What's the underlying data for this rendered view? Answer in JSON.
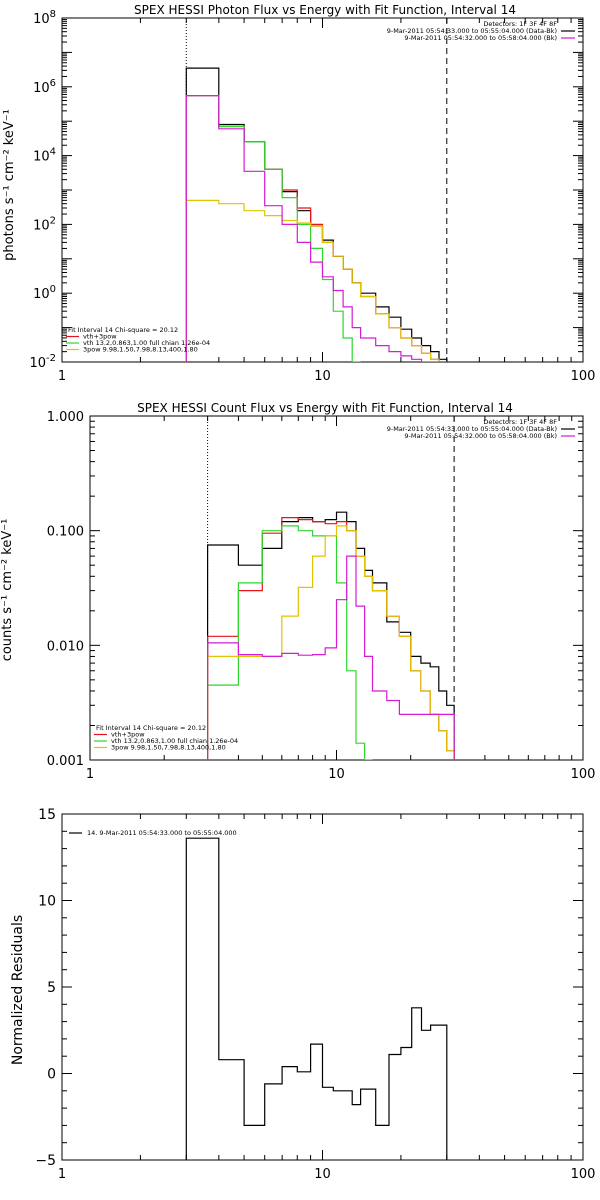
{
  "colors": {
    "black": "#000000",
    "red": "#e8121a",
    "green": "#2ed62e",
    "magenta": "#d61ad6",
    "yellow": "#e0c400",
    "axes": "#000000"
  },
  "chart_data": [
    {
      "type": "line",
      "title": "SPEX HESSI Photon Flux vs Energy with Fit Function, Interval 14",
      "xlabel": "",
      "ylabel": "photons s⁻¹ cm⁻² keV⁻¹",
      "xscale": "log",
      "yscale": "log",
      "xlim": [
        1,
        100
      ],
      "ylim": [
        0.01,
        100000000
      ],
      "x_tick_labels": [
        "1",
        "10",
        "100"
      ],
      "y_tick_labels": [
        "10^-2",
        "10^0",
        "10^2",
        "10^4",
        "10^6",
        "10^8"
      ],
      "vlines": [
        {
          "x": 3,
          "style": "dotted"
        },
        {
          "x": 30,
          "style": "dashed"
        }
      ],
      "legend_top": [
        "Detectors: 1F 3F 4F 8F",
        "9-Mar-2011 05:54:33.000 to 05:55:04.000 (Data-Bk)",
        "9-Mar-2011 05:54:32.000 to 05:58:04.000 (Bk)"
      ],
      "legend_top_colors": [
        "#000000",
        "#000000",
        "#d61ad6"
      ],
      "legend_bottom": [
        "Fit Interval 14   Chi-square = 20.12",
        "vth+3pow",
        "vth 13.2,0.863,1.00  full chian 1.26e-04",
        "3pow 9.98,1.50,7.98,8.13,400,1.80"
      ],
      "legend_bottom_colors": [
        "",
        "#e8121a",
        "#2ed62e",
        "#e0c400"
      ],
      "edges": [
        3.0,
        4.0,
        5.0,
        6.0,
        7.0,
        8.0,
        9.0,
        10.0,
        11.0,
        12.0,
        13.0,
        14.0,
        16.0,
        18.0,
        20.0,
        22.0,
        24.0,
        26.0,
        28.0,
        30.0
      ],
      "series": [
        {
          "name": "9-Mar-2011 05:54:33.000 to 05:55:04.000 (Data-Bk)",
          "color": "#000000",
          "values": [
            3500000,
            80000,
            25000,
            4000,
            900,
            250,
            90,
            35,
            12,
            5,
            2.0,
            1.0,
            0.4,
            0.2,
            0.09,
            0.05,
            0.03,
            0.02,
            0.012
          ]
        },
        {
          "name": "vth+3pow",
          "color": "#e8121a",
          "values": [
            550000,
            70000,
            25000,
            4000,
            1000,
            300,
            100,
            30,
            12,
            5,
            2.0,
            0.8,
            0.25,
            0.1,
            0.05,
            0.03,
            0.018,
            0.012,
            0.01
          ]
        },
        {
          "name": "vth 13.2,0.863,1.00  full chian 1.26e-04",
          "color": "#2ed62e",
          "values": [
            550000,
            70000,
            25000,
            4000,
            600,
            100,
            20,
            2.5,
            0.3,
            0.05,
            0.01
          ]
        },
        {
          "name": "3pow 9.98,1.50,7.98,8.13,400,1.80",
          "color": "#e0c400",
          "values": [
            500,
            400,
            250,
            180,
            130,
            110,
            90,
            30,
            12,
            5,
            2.0,
            0.8,
            0.25,
            0.1,
            0.05,
            0.03,
            0.018,
            0.012,
            0.01
          ]
        },
        {
          "name": "9-Mar-2011 05:54:32.000 to 05:58:04.000 (Bk)",
          "color": "#d61ad6",
          "values": [
            550000,
            60000,
            3500,
            350,
            100,
            30,
            8,
            3,
            1.2,
            0.4,
            0.1,
            0.05,
            0.03,
            0.02,
            0.015,
            0.012,
            0.01,
            0.01,
            0.01
          ]
        }
      ]
    },
    {
      "type": "line",
      "title": "SPEX HESSI Count Flux vs Energy with Fit Function, Interval 14",
      "xlabel": "",
      "ylabel": "counts s⁻¹ cm⁻² keV⁻¹",
      "xscale": "log",
      "yscale": "log",
      "xlim": [
        1,
        100
      ],
      "ylim": [
        0.001,
        1
      ],
      "x_tick_labels": [
        "1",
        "10",
        "100"
      ],
      "y_tick_labels": [
        "0.001",
        "0.010",
        "0.100",
        "1.000"
      ],
      "vlines": [
        {
          "x": 3,
          "style": "dotted"
        },
        {
          "x": 30,
          "style": "dashed"
        }
      ],
      "legend_top": [
        "Detectors: 1F 3F 4F 8F",
        "9-Mar-2011 05:54:33.000 to 05:55:04.000 (Data-Bk)",
        "9-Mar-2011 05:54:32.000 to 05:58:04.000 (Bk)"
      ],
      "legend_top_colors": [
        "#000000",
        "#000000",
        "#d61ad6"
      ],
      "legend_bottom": [
        "Fit Interval 14   Chi-square = 20.12",
        "vth+3pow",
        "vth 13.2,0.863,1.00  full chian 1.26e-04",
        "3pow 9.98,1.50,7.98,8.13,400,1.80"
      ],
      "legend_bottom_colors": [
        "",
        "#e8121a",
        "#2ed62e",
        "#e0c400"
      ],
      "edges": [
        3.0,
        4.0,
        5.0,
        6.0,
        7.0,
        8.0,
        9.0,
        10.0,
        11.0,
        12.0,
        13.0,
        14.0,
        16.0,
        18.0,
        20.0,
        22.0,
        24.0,
        26.0,
        28.0,
        30.0
      ],
      "series": [
        {
          "name": "9-Mar-2011 05:54:33.000 to 05:55:04.000 (Data-Bk)",
          "color": "#000000",
          "values": [
            0.075,
            0.05,
            0.07,
            0.12,
            0.13,
            0.12,
            0.125,
            0.145,
            0.12,
            0.07,
            0.045,
            0.035,
            0.016,
            0.013,
            0.008,
            0.007,
            0.0065,
            0.004,
            0.003
          ]
        },
        {
          "name": "vth+3pow",
          "color": "#e8121a",
          "values": [
            0.012,
            0.03,
            0.095,
            0.13,
            0.125,
            0.12,
            0.115,
            0.12,
            0.1,
            0.06,
            0.04,
            0.03,
            0.018,
            0.012,
            0.006,
            0.004,
            0.0025,
            0.0018,
            0.0012
          ]
        },
        {
          "name": "vth 13.2,0.863,1.00  full chian 1.26e-04",
          "color": "#2ed62e",
          "values": [
            0.0045,
            0.035,
            0.1,
            0.11,
            0.1,
            0.09,
            0.09,
            0.035,
            0.006,
            0.0014,
            0.001
          ]
        },
        {
          "name": "3pow 9.98,1.50,7.98,8.13,400,1.80",
          "color": "#e0c400",
          "values": [
            0.008,
            0.008,
            0.008,
            0.018,
            0.032,
            0.06,
            0.09,
            0.11,
            0.1,
            0.06,
            0.04,
            0.03,
            0.018,
            0.012,
            0.006,
            0.004,
            0.0025,
            0.0018,
            0.0012
          ]
        },
        {
          "name": "9-Mar-2011 05:54:32.000 to 05:58:04.000 (Bk)",
          "color": "#d61ad6",
          "values": [
            0.0105,
            0.0083,
            0.008,
            0.0085,
            0.0082,
            0.0083,
            0.0095,
            0.025,
            0.06,
            0.022,
            0.008,
            0.004,
            0.0033,
            0.0025,
            0.0025,
            0.0025,
            0.0025,
            0.0025,
            0.0025
          ]
        }
      ]
    },
    {
      "type": "line",
      "title": "",
      "xlabel": "",
      "ylabel": "Normalized Residuals",
      "xscale": "log",
      "yscale": "linear",
      "xlim": [
        1,
        100
      ],
      "ylim": [
        -5,
        15
      ],
      "x_tick_labels": [
        "1",
        "10",
        "100"
      ],
      "y_tick_labels": [
        "−5",
        "0",
        "5",
        "10",
        "15"
      ],
      "legend_top": [
        "14.  9-Mar-2011 05:54:33.000 to 05:55:04.000"
      ],
      "edges": [
        3.0,
        4.0,
        5.0,
        6.0,
        7.0,
        8.0,
        9.0,
        10.0,
        11.0,
        12.0,
        13.0,
        14.0,
        16.0,
        18.0,
        20.0,
        22.0,
        24.0,
        26.0,
        28.0,
        30.0
      ],
      "series": [
        {
          "name": "14.  9-Mar-2011 05:54:33.000 to 05:55:04.000",
          "color": "#000000",
          "values": [
            13.6,
            0.8,
            -3.0,
            -0.6,
            0.4,
            0.1,
            1.7,
            -0.8,
            -1.0,
            -1.0,
            -1.8,
            -0.9,
            -3.0,
            1.1,
            1.5,
            3.8,
            2.5,
            2.8,
            2.8
          ]
        }
      ]
    }
  ]
}
